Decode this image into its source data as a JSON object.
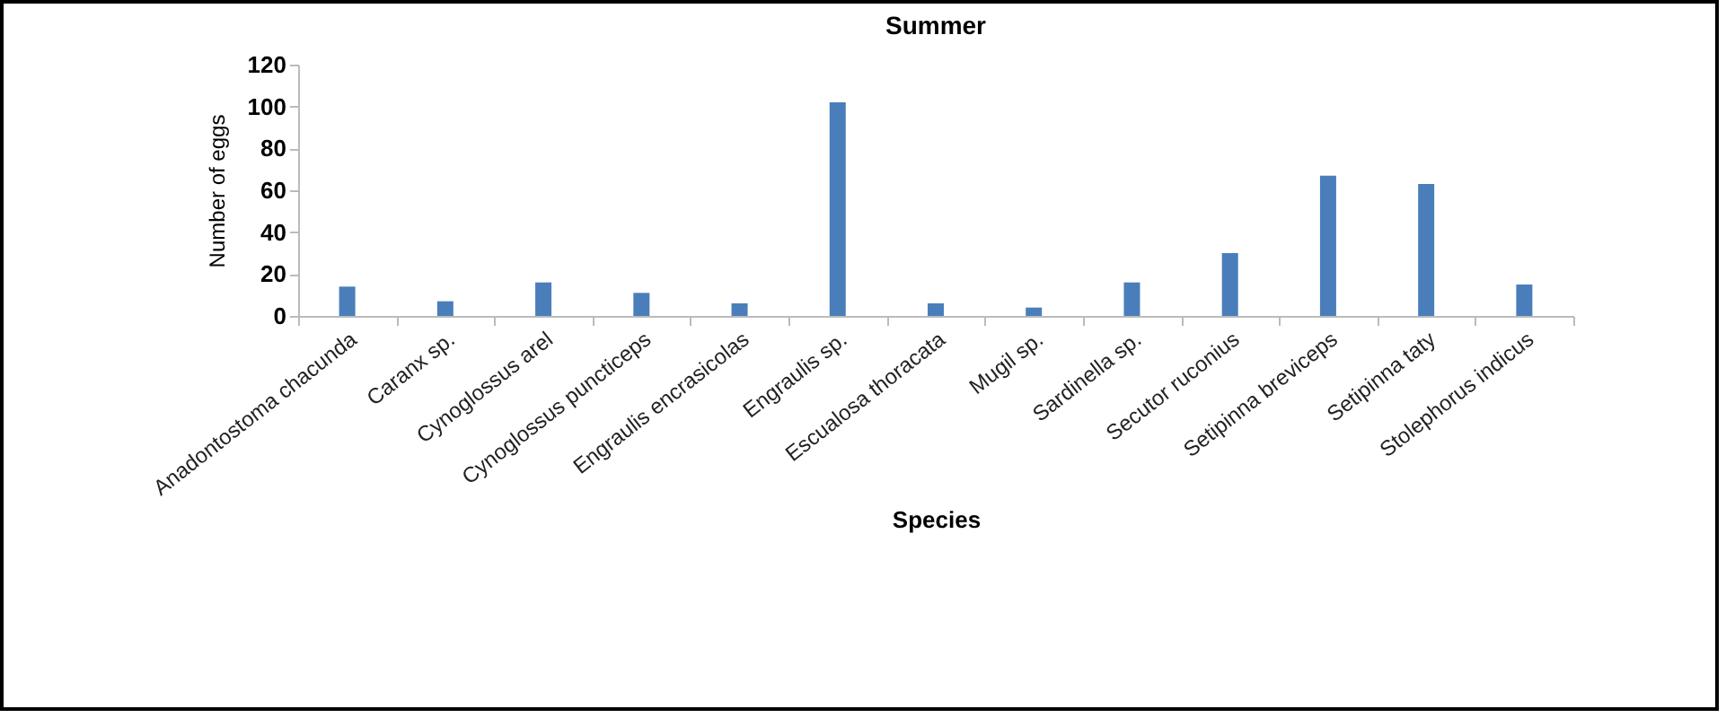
{
  "chart_data": {
    "type": "bar",
    "title": "Summer",
    "xlabel": "Species",
    "ylabel": "Number of eggs",
    "categories": [
      "Anadontostoma chacunda",
      "Caranx sp.",
      "Cynoglossus arel",
      "Cynoglossus puncticeps",
      "Engraulis encrasicolas",
      "Engraulis sp.",
      "Escualosa thoracata",
      "Mugil sp.",
      "Sardinella sp.",
      "Secutor ruconius",
      "Setipinna breviceps",
      "Setipinna taty",
      "Stolephorus indicus"
    ],
    "values": [
      14,
      7,
      16,
      11,
      6,
      102,
      6,
      4,
      16,
      30,
      67,
      63,
      15
    ],
    "color": "#4a7ebb",
    "ylim": [
      0,
      120
    ],
    "yticks": [
      0,
      20,
      40,
      60,
      80,
      100,
      120
    ]
  }
}
